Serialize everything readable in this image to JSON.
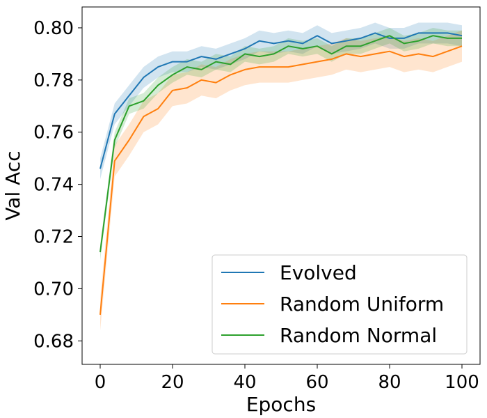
{
  "chart_data": {
    "type": "line",
    "xlabel": "Epochs",
    "ylabel": "Val Acc",
    "xlim": [
      -5,
      105
    ],
    "ylim": [
      0.671,
      0.808
    ],
    "xticks": [
      0,
      20,
      40,
      60,
      80,
      100
    ],
    "yticks": [
      0.68,
      0.7,
      0.72,
      0.74,
      0.76,
      0.78,
      0.8
    ],
    "ytick_labels": [
      "0.68",
      "0.70",
      "0.72",
      "0.74",
      "0.76",
      "0.78",
      "0.80"
    ],
    "grid": false,
    "legend_position": "lower-right",
    "x": [
      0,
      4,
      8,
      12,
      16,
      20,
      24,
      28,
      32,
      36,
      40,
      44,
      48,
      52,
      56,
      60,
      64,
      68,
      72,
      76,
      80,
      84,
      88,
      92,
      96,
      100
    ],
    "series": [
      {
        "name": "Evolved",
        "color": "#1f77b4",
        "values": [
          0.746,
          0.767,
          0.774,
          0.781,
          0.785,
          0.787,
          0.787,
          0.789,
          0.788,
          0.79,
          0.792,
          0.795,
          0.794,
          0.795,
          0.794,
          0.797,
          0.794,
          0.795,
          0.796,
          0.798,
          0.796,
          0.796,
          0.798,
          0.798,
          0.798,
          0.797
        ],
        "band": 0.004
      },
      {
        "name": "Random Uniform",
        "color": "#ff7f0e",
        "values": [
          0.69,
          0.749,
          0.757,
          0.766,
          0.769,
          0.776,
          0.777,
          0.78,
          0.779,
          0.782,
          0.784,
          0.785,
          0.785,
          0.785,
          0.786,
          0.787,
          0.788,
          0.79,
          0.789,
          0.79,
          0.791,
          0.789,
          0.79,
          0.789,
          0.791,
          0.793
        ],
        "band": 0.006
      },
      {
        "name": "Random Normal",
        "color": "#2ca02c",
        "values": [
          0.714,
          0.757,
          0.77,
          0.772,
          0.778,
          0.782,
          0.785,
          0.784,
          0.787,
          0.786,
          0.79,
          0.789,
          0.79,
          0.793,
          0.792,
          0.793,
          0.79,
          0.793,
          0.793,
          0.795,
          0.797,
          0.794,
          0.795,
          0.797,
          0.796,
          0.796
        ],
        "band": 0.003
      }
    ]
  }
}
